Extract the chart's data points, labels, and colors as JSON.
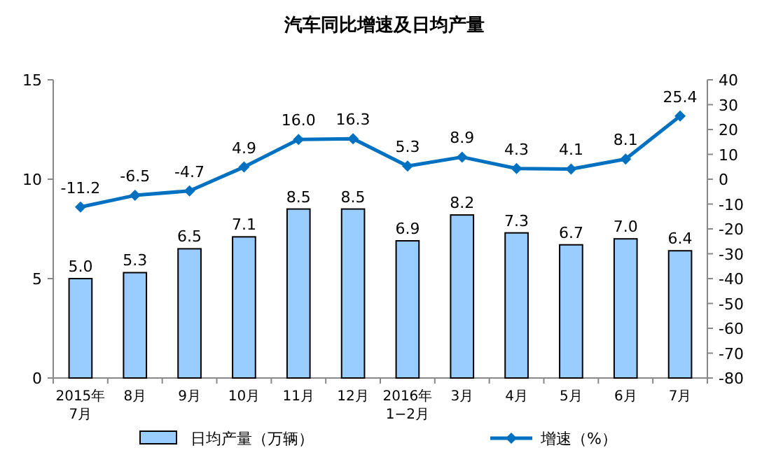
{
  "chart_data": {
    "type": "bar",
    "title": "汽车同比增速及日均产量",
    "categories": [
      "2015年\n7月",
      "8月",
      "9月",
      "10月",
      "11月",
      "12月",
      "2016年\n1−2月",
      "3月",
      "4月",
      "5月",
      "6月",
      "7月"
    ],
    "series": [
      {
        "name": "日均产量（万辆）",
        "color": "#99ccff",
        "values": [
          5.0,
          5.3,
          6.5,
          7.1,
          8.5,
          8.5,
          6.9,
          8.2,
          7.3,
          6.7,
          7.0,
          6.4
        ],
        "value_labels": [
          "5.0",
          "5.3",
          "6.5",
          "7.1",
          "8.5",
          "8.5",
          "6.9",
          "8.2",
          "7.3",
          "6.7",
          "7.0",
          "6.4"
        ]
      },
      {
        "name": "增速（%）",
        "type": "line",
        "axis": "y2",
        "color": "#0070c0",
        "marker": "diamond",
        "values": [
          -11.2,
          -6.5,
          -4.7,
          4.9,
          16.0,
          16.3,
          5.3,
          8.9,
          4.3,
          4.1,
          8.1,
          25.4
        ],
        "value_labels": [
          "-11.2",
          "-6.5",
          "-4.7",
          "4.9",
          "16.0",
          "16.3",
          "5.3",
          "8.9",
          "4.3",
          "4.1",
          "8.1",
          "25.4"
        ]
      }
    ],
    "ylim": [
      0,
      15
    ],
    "yticks": [
      0,
      5,
      10,
      15
    ],
    "y2lim": [
      -80,
      40
    ],
    "y2ticks": [
      -80,
      -70,
      -60,
      -50,
      -40,
      -30,
      -20,
      -10,
      0,
      10,
      20,
      30,
      40
    ],
    "grid": false,
    "legend": "bottom"
  }
}
